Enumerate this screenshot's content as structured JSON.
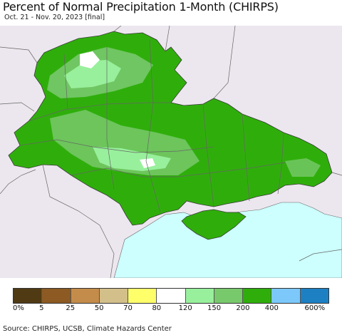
{
  "title": "Percent of Normal Precipitation 1-Month (CHIRPS)",
  "subtitle": "Oct. 21 - Nov. 20, 2023 [final]",
  "source": "Source: CHIRPS, UCSB, Climate Hazards Center",
  "colors": {
    "background_land": "#ece7ee",
    "sea": "#ccfffe",
    "green_400": "#2fae0b",
    "green_200": "#78c96b",
    "green_150": "#98f09c",
    "white_100": "#ffffff",
    "border": "#555555"
  },
  "legend": {
    "swatches": [
      "#4f3a14",
      "#8c5a22",
      "#c48c4a",
      "#d2bf8a",
      "#ffff6a",
      "#ffffff",
      "#98f09c",
      "#78c96b",
      "#2fae0b",
      "#7cc8fb",
      "#1d80c3"
    ],
    "ticks": [
      "0%",
      "5",
      "25",
      "50",
      "70",
      "80",
      "120",
      "150",
      "200",
      "400",
      "600%"
    ]
  }
}
